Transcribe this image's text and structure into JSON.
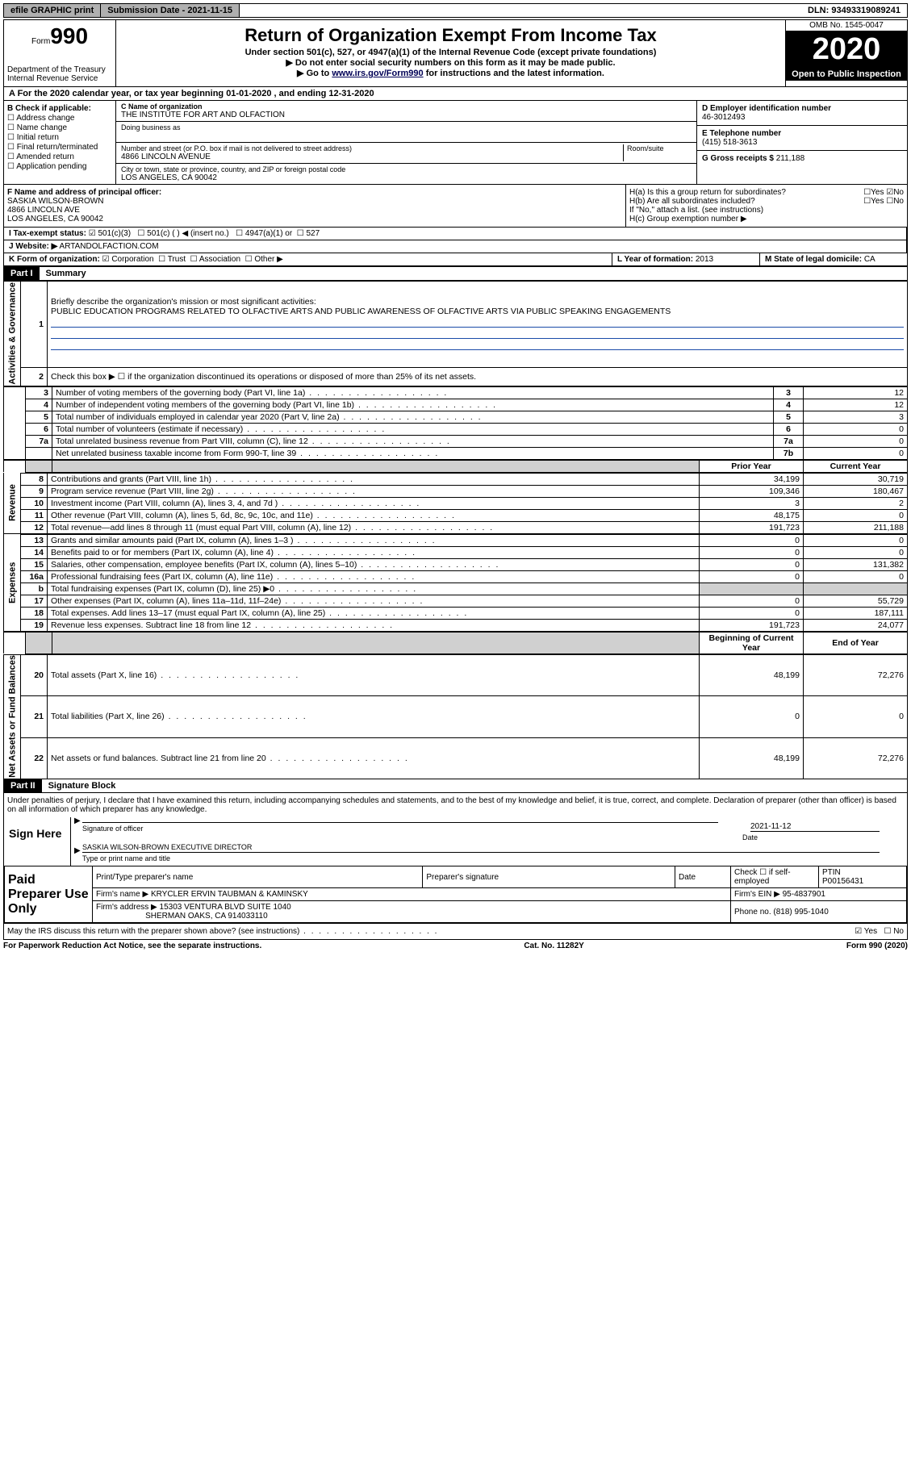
{
  "topbar": {
    "efile": "efile GRAPHIC print",
    "submission": "Submission Date - 2021-11-15",
    "dln": "DLN: 93493319089241"
  },
  "header": {
    "form_prefix": "Form",
    "form_no": "990",
    "dept": "Department of the Treasury\nInternal Revenue Service",
    "title": "Return of Organization Exempt From Income Tax",
    "subtitle": "Under section 501(c), 527, or 4947(a)(1) of the Internal Revenue Code (except private foundations)",
    "note1": "▶ Do not enter social security numbers on this form as it may be made public.",
    "note2_pre": "▶ Go to ",
    "note2_link": "www.irs.gov/Form990",
    "note2_post": " for instructions and the latest information.",
    "omb": "OMB No. 1545-0047",
    "year": "2020",
    "inspect": "Open to Public Inspection"
  },
  "period": {
    "text": "A For the 2020 calendar year, or tax year beginning 01-01-2020    , and ending 12-31-2020"
  },
  "colB": {
    "title": "B Check if applicable:",
    "opts": [
      "Address change",
      "Name change",
      "Initial return",
      "Final return/terminated",
      "Amended return",
      "Application pending"
    ]
  },
  "colC": {
    "name_label": "C Name of organization",
    "name": "THE INSTITUTE FOR ART AND OLFACTION",
    "dba_label": "Doing business as",
    "addr_label": "Number and street (or P.O. box if mail is not delivered to street address)",
    "addr": "4866 LINCOLN AVENUE",
    "room_label": "Room/suite",
    "city_label": "City or town, state or province, country, and ZIP or foreign postal code",
    "city": "LOS ANGELES, CA  90042"
  },
  "colD": {
    "ein_label": "D Employer identification number",
    "ein": "46-3012493",
    "phone_label": "E Telephone number",
    "phone": "(415) 518-3613",
    "gross_label": "G Gross receipts $",
    "gross": "211,188"
  },
  "colF": {
    "label": "F Name and address of principal officer:",
    "name": "SASKIA WILSON-BROWN",
    "addr1": "4866 LINCOLN AVE",
    "addr2": "LOS ANGELES, CA  90042"
  },
  "colH": {
    "a": "H(a)  Is this a group return for subordinates?",
    "b": "H(b)  Are all subordinates included?",
    "note": "If \"No,\" attach a list. (see instructions)",
    "c": "H(c)  Group exemption number ▶"
  },
  "rowI": {
    "label": "I  Tax-exempt status:",
    "o1": "501(c)(3)",
    "o2": "501(c) (   ) ◀ (insert no.)",
    "o3": "4947(a)(1) or",
    "o4": "527"
  },
  "rowJ": {
    "label": "J  Website: ▶",
    "url": "ARTANDOLFACTION.COM"
  },
  "rowK": {
    "label": "K Form of organization:",
    "o1": "Corporation",
    "o2": "Trust",
    "o3": "Association",
    "o4": "Other ▶",
    "year_label": "L Year of formation: ",
    "year": "2013",
    "state_label": "M State of legal domicile: ",
    "state": "CA"
  },
  "part1": {
    "label": "Part I",
    "title": "Summary",
    "q1": "Briefly describe the organization's mission or most significant activities:",
    "q1_ans": "PUBLIC EDUCATION PROGRAMS RELATED TO OLFACTIVE ARTS AND PUBLIC AWARENESS OF OLFACTIVE ARTS VIA PUBLIC SPEAKING ENGAGEMENTS",
    "q2": "Check this box ▶ ☐ if the organization discontinued its operations or disposed of more than 25% of its net assets.",
    "sections": {
      "governance": "Activities & Governance",
      "revenue": "Revenue",
      "expenses": "Expenses",
      "net": "Net Assets or Fund Balances"
    },
    "col_headers": {
      "py": "Prior Year",
      "cy": "Current Year",
      "beg": "Beginning of Current Year",
      "end": "End of Year"
    },
    "rows_gov": [
      {
        "n": "3",
        "d": "Number of voting members of the governing body (Part VI, line 1a)",
        "box": "3",
        "v": "12"
      },
      {
        "n": "4",
        "d": "Number of independent voting members of the governing body (Part VI, line 1b)",
        "box": "4",
        "v": "12"
      },
      {
        "n": "5",
        "d": "Total number of individuals employed in calendar year 2020 (Part V, line 2a)",
        "box": "5",
        "v": "3"
      },
      {
        "n": "6",
        "d": "Total number of volunteers (estimate if necessary)",
        "box": "6",
        "v": "0"
      },
      {
        "n": "7a",
        "d": "Total unrelated business revenue from Part VIII, column (C), line 12",
        "box": "7a",
        "v": "0"
      },
      {
        "n": "",
        "d": "Net unrelated business taxable income from Form 990-T, line 39",
        "box": "7b",
        "v": "0"
      }
    ],
    "rows_rev": [
      {
        "n": "8",
        "d": "Contributions and grants (Part VIII, line 1h)",
        "py": "34,199",
        "cy": "30,719"
      },
      {
        "n": "9",
        "d": "Program service revenue (Part VIII, line 2g)",
        "py": "109,346",
        "cy": "180,467"
      },
      {
        "n": "10",
        "d": "Investment income (Part VIII, column (A), lines 3, 4, and 7d )",
        "py": "3",
        "cy": "2"
      },
      {
        "n": "11",
        "d": "Other revenue (Part VIII, column (A), lines 5, 6d, 8c, 9c, 10c, and 11e)",
        "py": "48,175",
        "cy": "0"
      },
      {
        "n": "12",
        "d": "Total revenue—add lines 8 through 11 (must equal Part VIII, column (A), line 12)",
        "py": "191,723",
        "cy": "211,188"
      }
    ],
    "rows_exp": [
      {
        "n": "13",
        "d": "Grants and similar amounts paid (Part IX, column (A), lines 1–3 )",
        "py": "0",
        "cy": "0"
      },
      {
        "n": "14",
        "d": "Benefits paid to or for members (Part IX, column (A), line 4)",
        "py": "0",
        "cy": "0"
      },
      {
        "n": "15",
        "d": "Salaries, other compensation, employee benefits (Part IX, column (A), lines 5–10)",
        "py": "0",
        "cy": "131,382"
      },
      {
        "n": "16a",
        "d": "Professional fundraising fees (Part IX, column (A), line 11e)",
        "py": "0",
        "cy": "0"
      },
      {
        "n": "b",
        "d": "Total fundraising expenses (Part IX, column (D), line 25) ▶0",
        "py": "",
        "cy": "",
        "shade": true
      },
      {
        "n": "17",
        "d": "Other expenses (Part IX, column (A), lines 11a–11d, 11f–24e)",
        "py": "0",
        "cy": "55,729"
      },
      {
        "n": "18",
        "d": "Total expenses. Add lines 13–17 (must equal Part IX, column (A), line 25)",
        "py": "0",
        "cy": "187,111"
      },
      {
        "n": "19",
        "d": "Revenue less expenses. Subtract line 18 from line 12",
        "py": "191,723",
        "cy": "24,077"
      }
    ],
    "rows_net": [
      {
        "n": "20",
        "d": "Total assets (Part X, line 16)",
        "py": "48,199",
        "cy": "72,276"
      },
      {
        "n": "21",
        "d": "Total liabilities (Part X, line 26)",
        "py": "0",
        "cy": "0"
      },
      {
        "n": "22",
        "d": "Net assets or fund balances. Subtract line 21 from line 20",
        "py": "48,199",
        "cy": "72,276"
      }
    ]
  },
  "part2": {
    "label": "Part II",
    "title": "Signature Block",
    "decl": "Under penalties of perjury, I declare that I have examined this return, including accompanying schedules and statements, and to the best of my knowledge and belief, it is true, correct, and complete. Declaration of preparer (other than officer) is based on all information of which preparer has any knowledge.",
    "sign_here": "Sign Here",
    "sig_label": "Signature of officer",
    "sig_date": "2021-11-12",
    "date_label": "Date",
    "officer": "SASKIA WILSON-BROWN  EXECUTIVE DIRECTOR",
    "officer_label": "Type or print name and title",
    "paid": "Paid Preparer Use Only",
    "prep_name_label": "Print/Type preparer's name",
    "prep_sig_label": "Preparer's signature",
    "prep_date_label": "Date",
    "prep_self": "Check ☐ if self-employed",
    "ptin_label": "PTIN",
    "ptin": "P00156431",
    "firm_name_label": "Firm's name    ▶",
    "firm_name": "KRYCLER ERVIN TAUBMAN & KAMINSKY",
    "firm_ein_label": "Firm's EIN ▶",
    "firm_ein": "95-4837901",
    "firm_addr_label": "Firm's address ▶",
    "firm_addr": "15303 VENTURA BLVD SUITE 1040",
    "firm_addr2": "SHERMAN OAKS, CA  914033110",
    "firm_phone_label": "Phone no.",
    "firm_phone": "(818) 995-1040",
    "discuss": "May the IRS discuss this return with the preparer shown above? (see instructions)",
    "yes": "Yes",
    "no": "No"
  },
  "footer": {
    "left": "For Paperwork Reduction Act Notice, see the separate instructions.",
    "mid": "Cat. No. 11282Y",
    "right": "Form 990 (2020)"
  }
}
